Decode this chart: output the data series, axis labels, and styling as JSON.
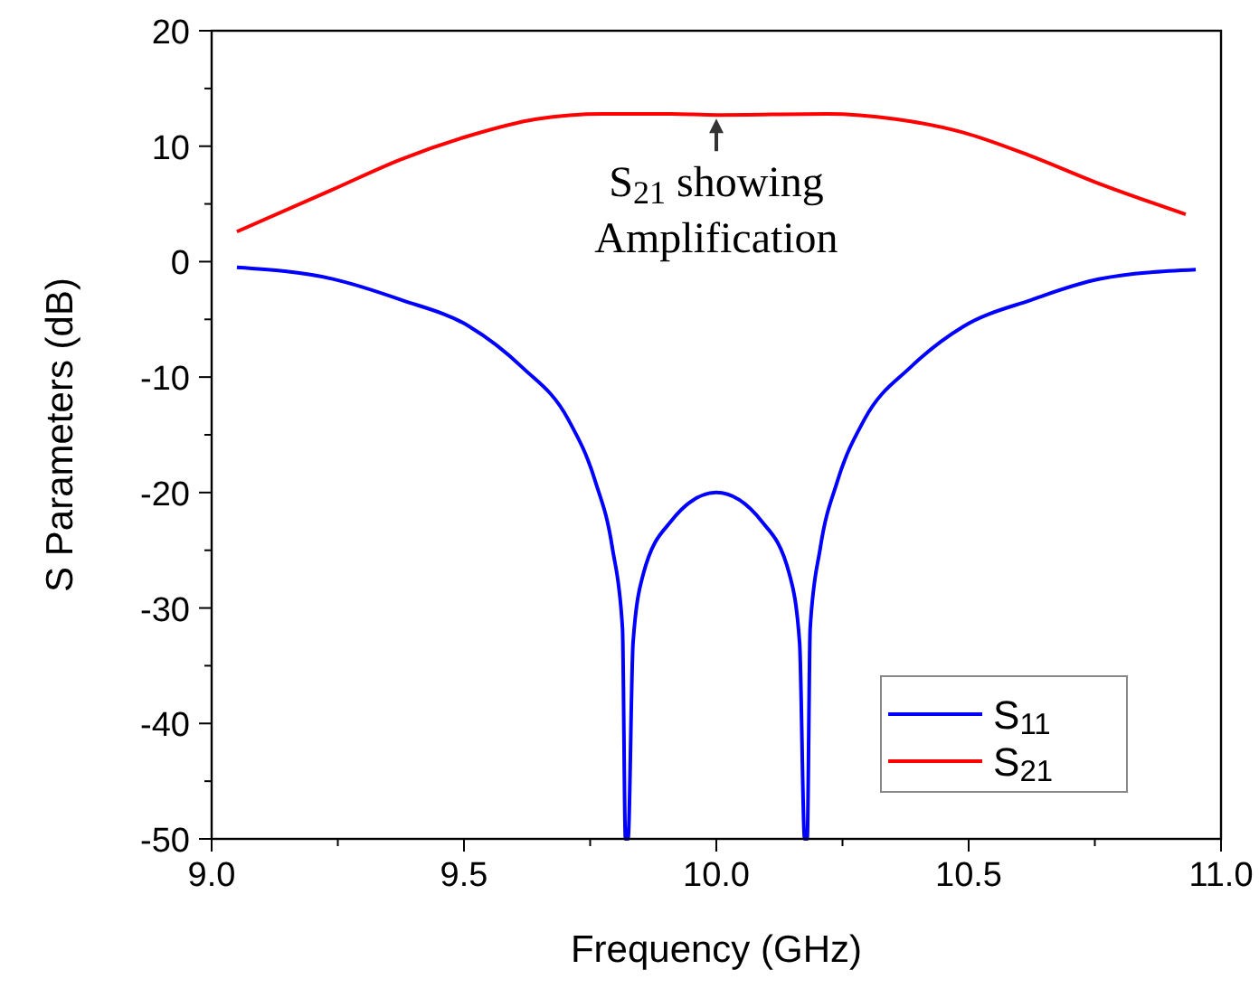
{
  "chart_data": {
    "type": "line",
    "xlabel": "Frequency (GHz)",
    "ylabel": "S Parameters (dB)",
    "xlim": [
      9.0,
      11.0
    ],
    "xticks": [
      {
        "value": 9.0,
        "label": "9.0"
      },
      {
        "value": 9.25,
        "label": null
      },
      {
        "value": 9.5,
        "label": "9.5"
      },
      {
        "value": 9.75,
        "label": null
      },
      {
        "value": 10.0,
        "label": "10.0"
      },
      {
        "value": 10.25,
        "label": null
      },
      {
        "value": 10.5,
        "label": "10.5"
      },
      {
        "value": 10.75,
        "label": null
      },
      {
        "value": 11.0,
        "label": "11.0"
      }
    ],
    "ylim": [
      -50,
      20
    ],
    "yticks": [
      -50,
      {
        "value": -45,
        "label": null
      },
      -40,
      {
        "value": -35,
        "label": null
      },
      -30,
      {
        "value": -25,
        "label": null
      },
      -20,
      {
        "value": -15,
        "label": null
      },
      -10,
      {
        "value": -5,
        "label": null
      },
      0,
      {
        "value": 5,
        "label": null
      },
      10,
      {
        "value": 15,
        "label": null
      },
      20
    ],
    "grid": false,
    "legend": "bottom right",
    "marker": "none",
    "line_style": "solid",
    "series": [
      {
        "name": "S$_{11}$",
        "color": "#0000ff",
        "x": [
          9.05,
          9.24,
          9.375,
          9.51,
          9.614,
          9.707,
          9.76,
          9.794,
          9.814,
          9.82,
          9.825,
          9.835,
          9.855,
          9.91,
          10.0,
          10.09,
          10.145,
          10.165,
          10.175,
          10.18,
          10.186,
          10.206,
          10.24,
          10.293,
          10.386,
          10.49,
          10.625,
          10.76,
          10.95
        ],
        "values": [
          -0.5,
          -1.5,
          -3.3,
          -5.6,
          -9.1,
          -13.7,
          -19.0,
          -24.8,
          -31.7,
          -50,
          -50,
          -33,
          -27.1,
          -22.5,
          -20,
          -22.5,
          -27.1,
          -33,
          -50,
          -50,
          -31.7,
          -24.8,
          -19.0,
          -13.7,
          -9.1,
          -5.6,
          -3.3,
          -1.5,
          -0.7
        ]
      },
      {
        "name": "S$_{21}$",
        "color": "#ff0000",
        "x": [
          9.05,
          9.24,
          9.375,
          9.51,
          9.643,
          9.776,
          9.91,
          10.0,
          10.22,
          10.355,
          10.488,
          10.62,
          10.75,
          10.93
        ],
        "values": [
          2.6,
          6.25,
          8.86,
          10.9,
          12.35,
          12.8,
          12.8,
          12.7,
          12.8,
          12.35,
          11.2,
          9.2,
          6.9,
          4.1
        ]
      }
    ],
    "annotations": [
      {
        "text": "S$_{21}$ showing\nAmplification",
        "x": 10.0,
        "y": 12.7
      }
    ]
  }
}
